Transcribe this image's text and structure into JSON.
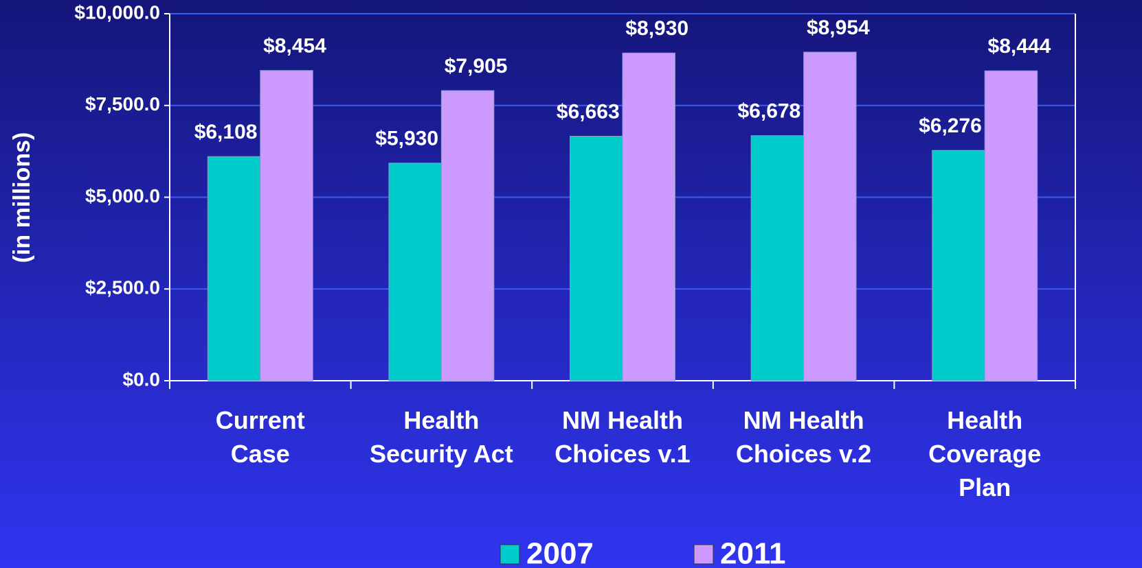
{
  "chart_data": {
    "type": "bar",
    "y_label": "(in millions)",
    "categories": [
      "Current\nCase",
      "Health\nSecurity Act",
      "NM Health\nChoices v.1",
      "NM Health\nChoices v.2",
      "Health\nCoverage\nPlan"
    ],
    "series": [
      {
        "name": "2007",
        "color": "#00cccc",
        "values": [
          6108,
          5930,
          6663,
          6678,
          6276
        ],
        "value_labels": [
          "$6,108",
          "$5,930",
          "$6,663",
          "$6,678",
          "$6,276"
        ]
      },
      {
        "name": "2011",
        "color": "#cc99ff",
        "values": [
          8454,
          7905,
          8930,
          8954,
          8444
        ],
        "value_labels": [
          "$8,454",
          "$7,905",
          "$8,930",
          "$8,954",
          "$8,444"
        ]
      }
    ],
    "ylim": [
      0,
      10000
    ],
    "yticks": [
      {
        "value": 0,
        "label": "$0.0"
      },
      {
        "value": 2500,
        "label": "$2,500.0"
      },
      {
        "value": 5000,
        "label": "$5,000.0"
      },
      {
        "value": 7500,
        "label": "$7,500.0"
      },
      {
        "value": 10000,
        "label": "$10,000.0"
      }
    ],
    "grid": true,
    "legend": "bottom"
  }
}
